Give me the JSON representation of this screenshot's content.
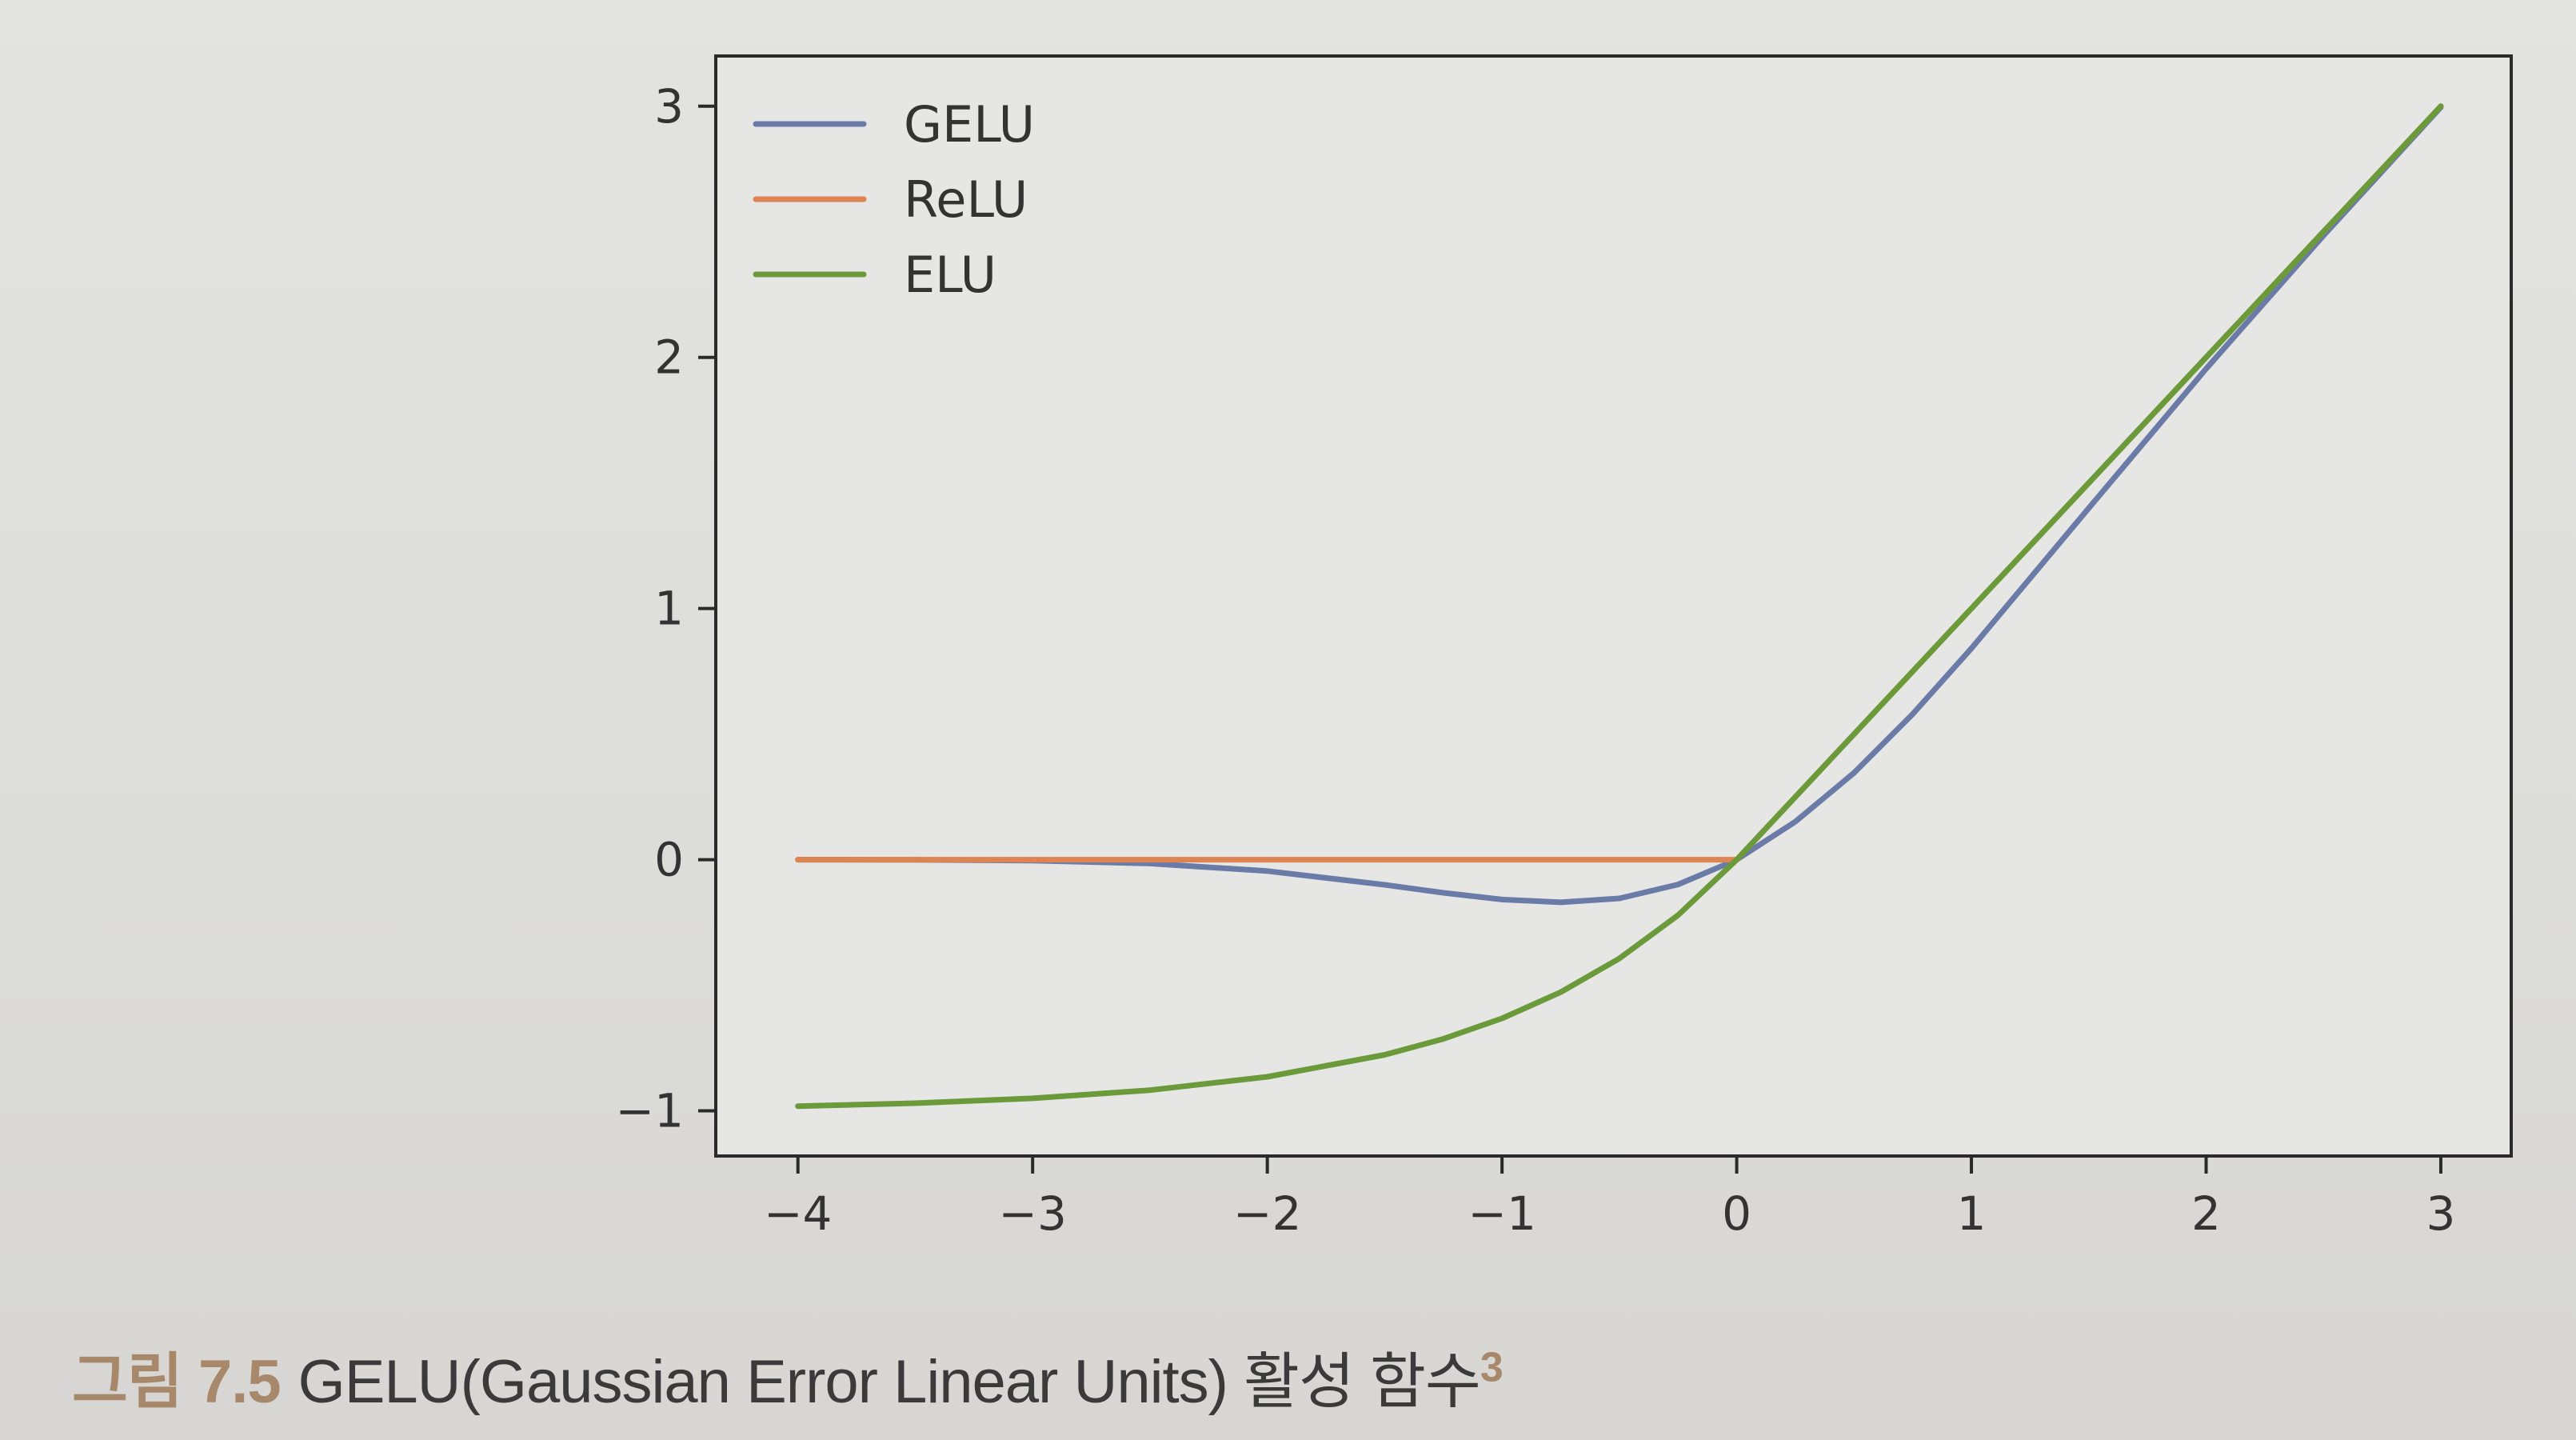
{
  "caption": {
    "number": "그림 7.5",
    "text": "GELU(Gaussian Error Linear Units) 활성 함수",
    "superscript": "3",
    "number_color": "#a8886a"
  },
  "chart_data": {
    "type": "line",
    "xlim": [
      -4.35,
      3.3
    ],
    "ylim": [
      -1.18,
      3.2
    ],
    "x_ticks": [
      -4,
      -3,
      -2,
      -1,
      0,
      1,
      2,
      3
    ],
    "x_tick_labels": [
      "−4",
      "−3",
      "−2",
      "−1",
      "0",
      "1",
      "2",
      "3"
    ],
    "y_ticks": [
      -1,
      0,
      1,
      2,
      3
    ],
    "y_tick_labels": [
      "−1",
      "0",
      "1",
      "2",
      "3"
    ],
    "grid": false,
    "legend_position": "top-left",
    "x": [
      -4.0,
      -3.5,
      -3.0,
      -2.5,
      -2.0,
      -1.5,
      -1.25,
      -1.0,
      -0.75,
      -0.5,
      -0.25,
      0.0,
      0.25,
      0.5,
      0.75,
      1.0,
      1.5,
      2.0,
      2.5,
      3.0
    ],
    "series": [
      {
        "name": "GELU",
        "color": "#6b7ba8",
        "values": [
          -0.0001,
          -0.0008,
          -0.004,
          -0.0155,
          -0.0455,
          -0.1002,
          -0.132,
          -0.1587,
          -0.17,
          -0.1543,
          -0.0987,
          0.0,
          0.1513,
          0.3457,
          0.5799,
          0.8413,
          1.3998,
          1.9545,
          2.4845,
          2.996
        ]
      },
      {
        "name": "ReLU",
        "color": "#dd8452",
        "values": [
          0,
          0,
          0,
          0,
          0,
          0,
          0,
          0,
          0,
          0,
          0,
          0,
          0.25,
          0.5,
          0.75,
          1.0,
          1.5,
          2.0,
          2.5,
          3.0
        ]
      },
      {
        "name": "ELU",
        "color": "#6a9a3a",
        "values": [
          -0.9817,
          -0.9698,
          -0.9502,
          -0.9179,
          -0.8647,
          -0.7769,
          -0.7135,
          -0.6321,
          -0.5276,
          -0.3935,
          -0.2212,
          0.0,
          0.25,
          0.5,
          0.75,
          1.0,
          1.5,
          2.0,
          2.5,
          3.0
        ]
      }
    ]
  }
}
